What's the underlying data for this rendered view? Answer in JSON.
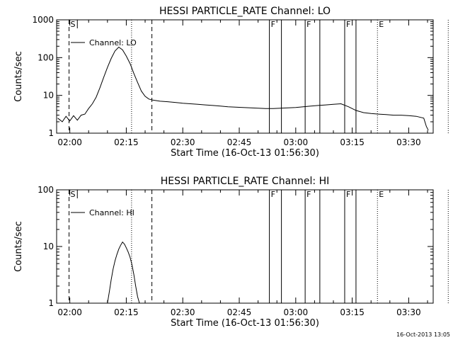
{
  "chart_data": [
    {
      "type": "line",
      "title": "HESSI PARTICLE_RATE Channel: LO",
      "xlabel": "Start Time (16-Oct-13 01:56:30)",
      "ylabel": "Counts/sec",
      "y_scale": "log",
      "ylim": [
        1,
        1000
      ],
      "xlim_minutes_after_0200": [
        -3.5,
        96.5
      ],
      "x_ticks": [
        "02:00",
        "02:15",
        "02:30",
        "02:45",
        "03:00",
        "03:15",
        "03:30"
      ],
      "y_ticks": [
        "1",
        "10",
        "100",
        "1000"
      ],
      "legend": {
        "label": "Channel: LO",
        "position": "top-left"
      },
      "markers": [
        {
          "label": "S",
          "minute": -0.2,
          "style": "dashed"
        },
        {
          "label": "",
          "minute": 2.0,
          "style": "solid-short"
        },
        {
          "label": "",
          "minute": 21.8,
          "style": "dashed"
        },
        {
          "label": "",
          "minute": 16.4,
          "style": "dotted"
        },
        {
          "label": "F",
          "minute": 53.0,
          "style": "solid"
        },
        {
          "label": "",
          "minute": 56.2,
          "style": "solid"
        },
        {
          "label": "F",
          "minute": 62.5,
          "style": "solid"
        },
        {
          "label": "",
          "minute": 66.4,
          "style": "solid"
        },
        {
          "label": "F",
          "minute": 73.0,
          "style": "solid"
        },
        {
          "label": "",
          "minute": 76.0,
          "style": "solid"
        },
        {
          "label": "E",
          "minute": 81.7,
          "style": "dotted"
        },
        {
          "label": "",
          "minute": 100.5,
          "style": "dotted"
        }
      ],
      "series": [
        {
          "name": "Channel: LO",
          "x": [
            -3.2,
            -2,
            -1,
            0,
            1,
            2,
            3,
            4,
            5,
            6,
            7,
            8,
            9,
            10,
            11,
            12,
            13,
            14,
            15,
            16,
            17,
            18,
            19,
            20,
            21,
            22,
            24,
            26,
            28,
            30,
            32,
            34,
            36,
            38,
            40,
            42,
            44,
            46,
            48,
            50,
            52,
            54,
            56,
            58,
            60,
            62,
            64,
            66,
            68,
            70,
            72,
            74,
            76,
            78,
            80,
            82,
            84,
            86,
            88,
            90,
            92,
            94,
            94.7,
            95.2
          ],
          "values": [
            2.5,
            2.0,
            2.8,
            2.1,
            2.9,
            2.2,
            3.0,
            3.2,
            4.5,
            6.0,
            9.0,
            16,
            30,
            55,
            95,
            150,
            190,
            160,
            110,
            70,
            38,
            22,
            13,
            9.5,
            8.0,
            7.5,
            7.0,
            6.8,
            6.5,
            6.2,
            6.0,
            5.8,
            5.6,
            5.4,
            5.2,
            5.0,
            4.9,
            4.8,
            4.7,
            4.6,
            4.5,
            4.5,
            4.6,
            4.7,
            4.8,
            5.0,
            5.2,
            5.4,
            5.6,
            5.8,
            6.0,
            5.0,
            4.0,
            3.5,
            3.3,
            3.2,
            3.1,
            3.0,
            3.0,
            2.9,
            2.8,
            2.5,
            1.5,
            1.2
          ]
        }
      ]
    },
    {
      "type": "line",
      "title": "HESSI PARTICLE_RATE Channel: HI",
      "xlabel": "Start Time (16-Oct-13 01:56:30)",
      "ylabel": "Counts/sec",
      "y_scale": "log",
      "ylim": [
        1,
        100
      ],
      "xlim_minutes_after_0200": [
        -3.5,
        96.5
      ],
      "x_ticks": [
        "02:00",
        "02:15",
        "02:30",
        "02:45",
        "03:00",
        "03:15",
        "03:30"
      ],
      "y_ticks": [
        "1",
        "10",
        "100"
      ],
      "legend": {
        "label": "Channel: HI",
        "position": "top-left"
      },
      "markers": [
        {
          "label": "S",
          "minute": -0.2,
          "style": "dashed"
        },
        {
          "label": "",
          "minute": 2.0,
          "style": "solid-short"
        },
        {
          "label": "",
          "minute": 21.8,
          "style": "dashed"
        },
        {
          "label": "",
          "minute": 16.4,
          "style": "dotted"
        },
        {
          "label": "F",
          "minute": 53.0,
          "style": "solid"
        },
        {
          "label": "",
          "minute": 56.2,
          "style": "solid"
        },
        {
          "label": "F",
          "minute": 62.5,
          "style": "solid"
        },
        {
          "label": "",
          "minute": 66.4,
          "style": "solid"
        },
        {
          "label": "F",
          "minute": 73.0,
          "style": "solid"
        },
        {
          "label": "",
          "minute": 76.0,
          "style": "solid"
        },
        {
          "label": "E",
          "minute": 81.7,
          "style": "dotted"
        },
        {
          "label": "",
          "minute": 100.5,
          "style": "dotted"
        }
      ],
      "series": [
        {
          "name": "Channel: HI",
          "x": [
            10,
            10.5,
            11,
            11.5,
            12,
            12.5,
            13,
            13.5,
            14,
            14.5,
            15,
            15.5,
            16,
            16.5,
            17,
            17.5,
            18,
            18.5
          ],
          "values": [
            1.0,
            1.6,
            2.6,
            4.0,
            5.6,
            7.2,
            9.0,
            10.5,
            12,
            11,
            9.5,
            8.0,
            6.5,
            4.8,
            3.2,
            2.0,
            1.3,
            1.0
          ]
        }
      ]
    }
  ],
  "footer": {
    "date_stamp": "16-Oct-2013 13:05"
  }
}
